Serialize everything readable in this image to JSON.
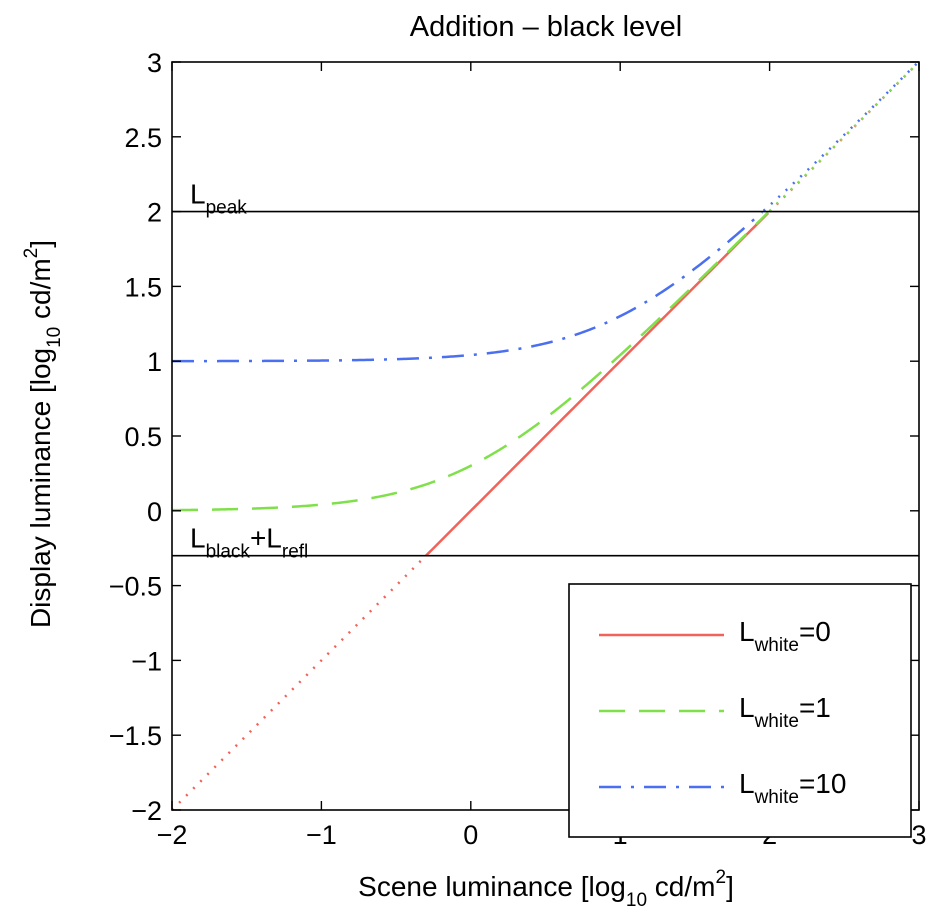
{
  "chart_data": {
    "type": "line",
    "title": "Addition – black level",
    "xlabel": {
      "pre": "Scene luminance [log",
      "sub": "10",
      "mid": " cd/m",
      "sup": "2",
      "post": "]"
    },
    "ylabel": {
      "pre": "Display luminance [log",
      "sub": "10",
      "mid": " cd/m",
      "sup": "2",
      "post": "]"
    },
    "xlim": [
      -2,
      3
    ],
    "ylim": [
      -2,
      3
    ],
    "xticks": [
      -2,
      -1,
      0,
      1,
      2,
      3
    ],
    "yticks": [
      -2,
      -1.5,
      -1,
      -0.5,
      0,
      0.5,
      1,
      1.5,
      2,
      2.5,
      3
    ],
    "xtick_labels": [
      "−2",
      "−1",
      "0",
      "1",
      "2",
      "3"
    ],
    "ytick_labels": [
      "−2",
      "−1.5",
      "−1",
      "−0.5",
      "0",
      "0.5",
      "1",
      "1.5",
      "2",
      "2.5",
      "3"
    ],
    "grid": false,
    "legend_position": "bottom-right",
    "hlines": [
      {
        "y": 2,
        "label_main": "L",
        "label_sub": "peak"
      },
      {
        "y": -0.3,
        "label_main": "L",
        "label_sub": "black",
        "label_mid": "+L",
        "label_sub2": "refl"
      }
    ],
    "curves": {
      "peak": 2,
      "black_level": -0.3,
      "note": "display = log10(10^scene + L_white), clipped between the two limits"
    },
    "series": [
      {
        "name_main": "L",
        "name_sub": "white",
        "name_post": "=0",
        "l_white": 0,
        "color": "#f0625a",
        "style": "solid"
      },
      {
        "name_main": "L",
        "name_sub": "white",
        "name_post": "=1",
        "l_white": 1,
        "color": "#7fe04a",
        "style": "dashed"
      },
      {
        "name_main": "L",
        "name_sub": "white",
        "name_post": "=10",
        "l_white": 10,
        "color": "#4a6ff0",
        "style": "dashdot"
      }
    ],
    "unclipped_style": "dotted"
  }
}
